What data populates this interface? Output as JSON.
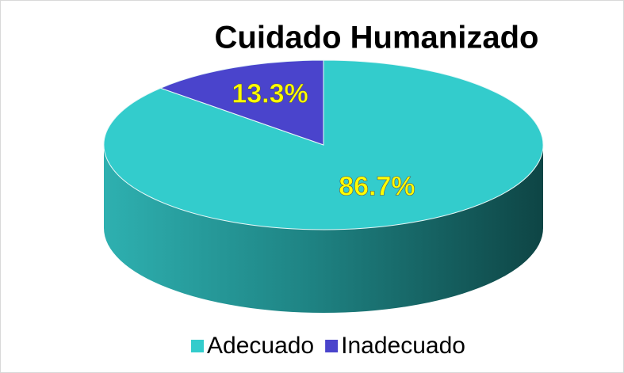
{
  "chart_data": {
    "type": "pie",
    "title": "Cuidado Humanizado",
    "categories": [
      "Adecuado",
      "Inadecuado"
    ],
    "values": [
      86.7,
      13.3
    ],
    "value_labels": [
      "86.7%",
      "13.3%"
    ],
    "colors": [
      "#33cccc",
      "#4a44cc"
    ],
    "legend": "bottom"
  }
}
